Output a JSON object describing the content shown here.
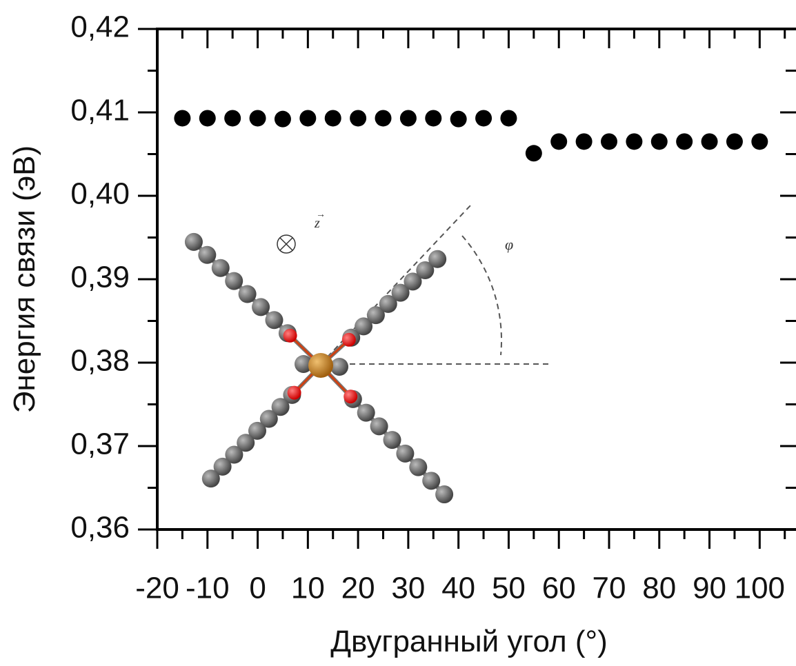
{
  "chart_data": {
    "type": "scatter",
    "x_label": "Двугранный угол (°)",
    "y_label": "Энергия связи (эВ)",
    "annotations": [
      "z",
      "φ"
    ],
    "x": [
      -15,
      -10,
      -5,
      0,
      5,
      10,
      15,
      20,
      25,
      30,
      35,
      40,
      45,
      50,
      55,
      60,
      65,
      70,
      75,
      80,
      85,
      90,
      95,
      100
    ],
    "values": [
      0.4093,
      0.4093,
      0.4093,
      0.4093,
      0.4092,
      0.4093,
      0.4093,
      0.4093,
      0.4093,
      0.4093,
      0.4093,
      0.4092,
      0.4093,
      0.4093,
      0.4051,
      0.4065,
      0.4065,
      0.4065,
      0.4065,
      0.4065,
      0.4065,
      0.4065,
      0.4065,
      0.4065
    ],
    "color": "#000000",
    "xlim": [
      -20,
      106
    ],
    "xticks": [
      -20,
      -10,
      0,
      10,
      20,
      30,
      40,
      50,
      60,
      70,
      80,
      90,
      100
    ],
    "ylim": [
      0.36,
      0.42
    ],
    "yticks": [
      {
        "value": 0.36,
        "label": "0,36"
      },
      {
        "value": 0.37,
        "label": "0,37"
      },
      {
        "value": 0.38,
        "label": "0,38"
      },
      {
        "value": 0.39,
        "label": "0,39"
      },
      {
        "value": 0.4,
        "label": "0,40"
      },
      {
        "value": 0.41,
        "label": "0,41"
      },
      {
        "value": 0.42,
        "label": "0,42"
      }
    ]
  }
}
